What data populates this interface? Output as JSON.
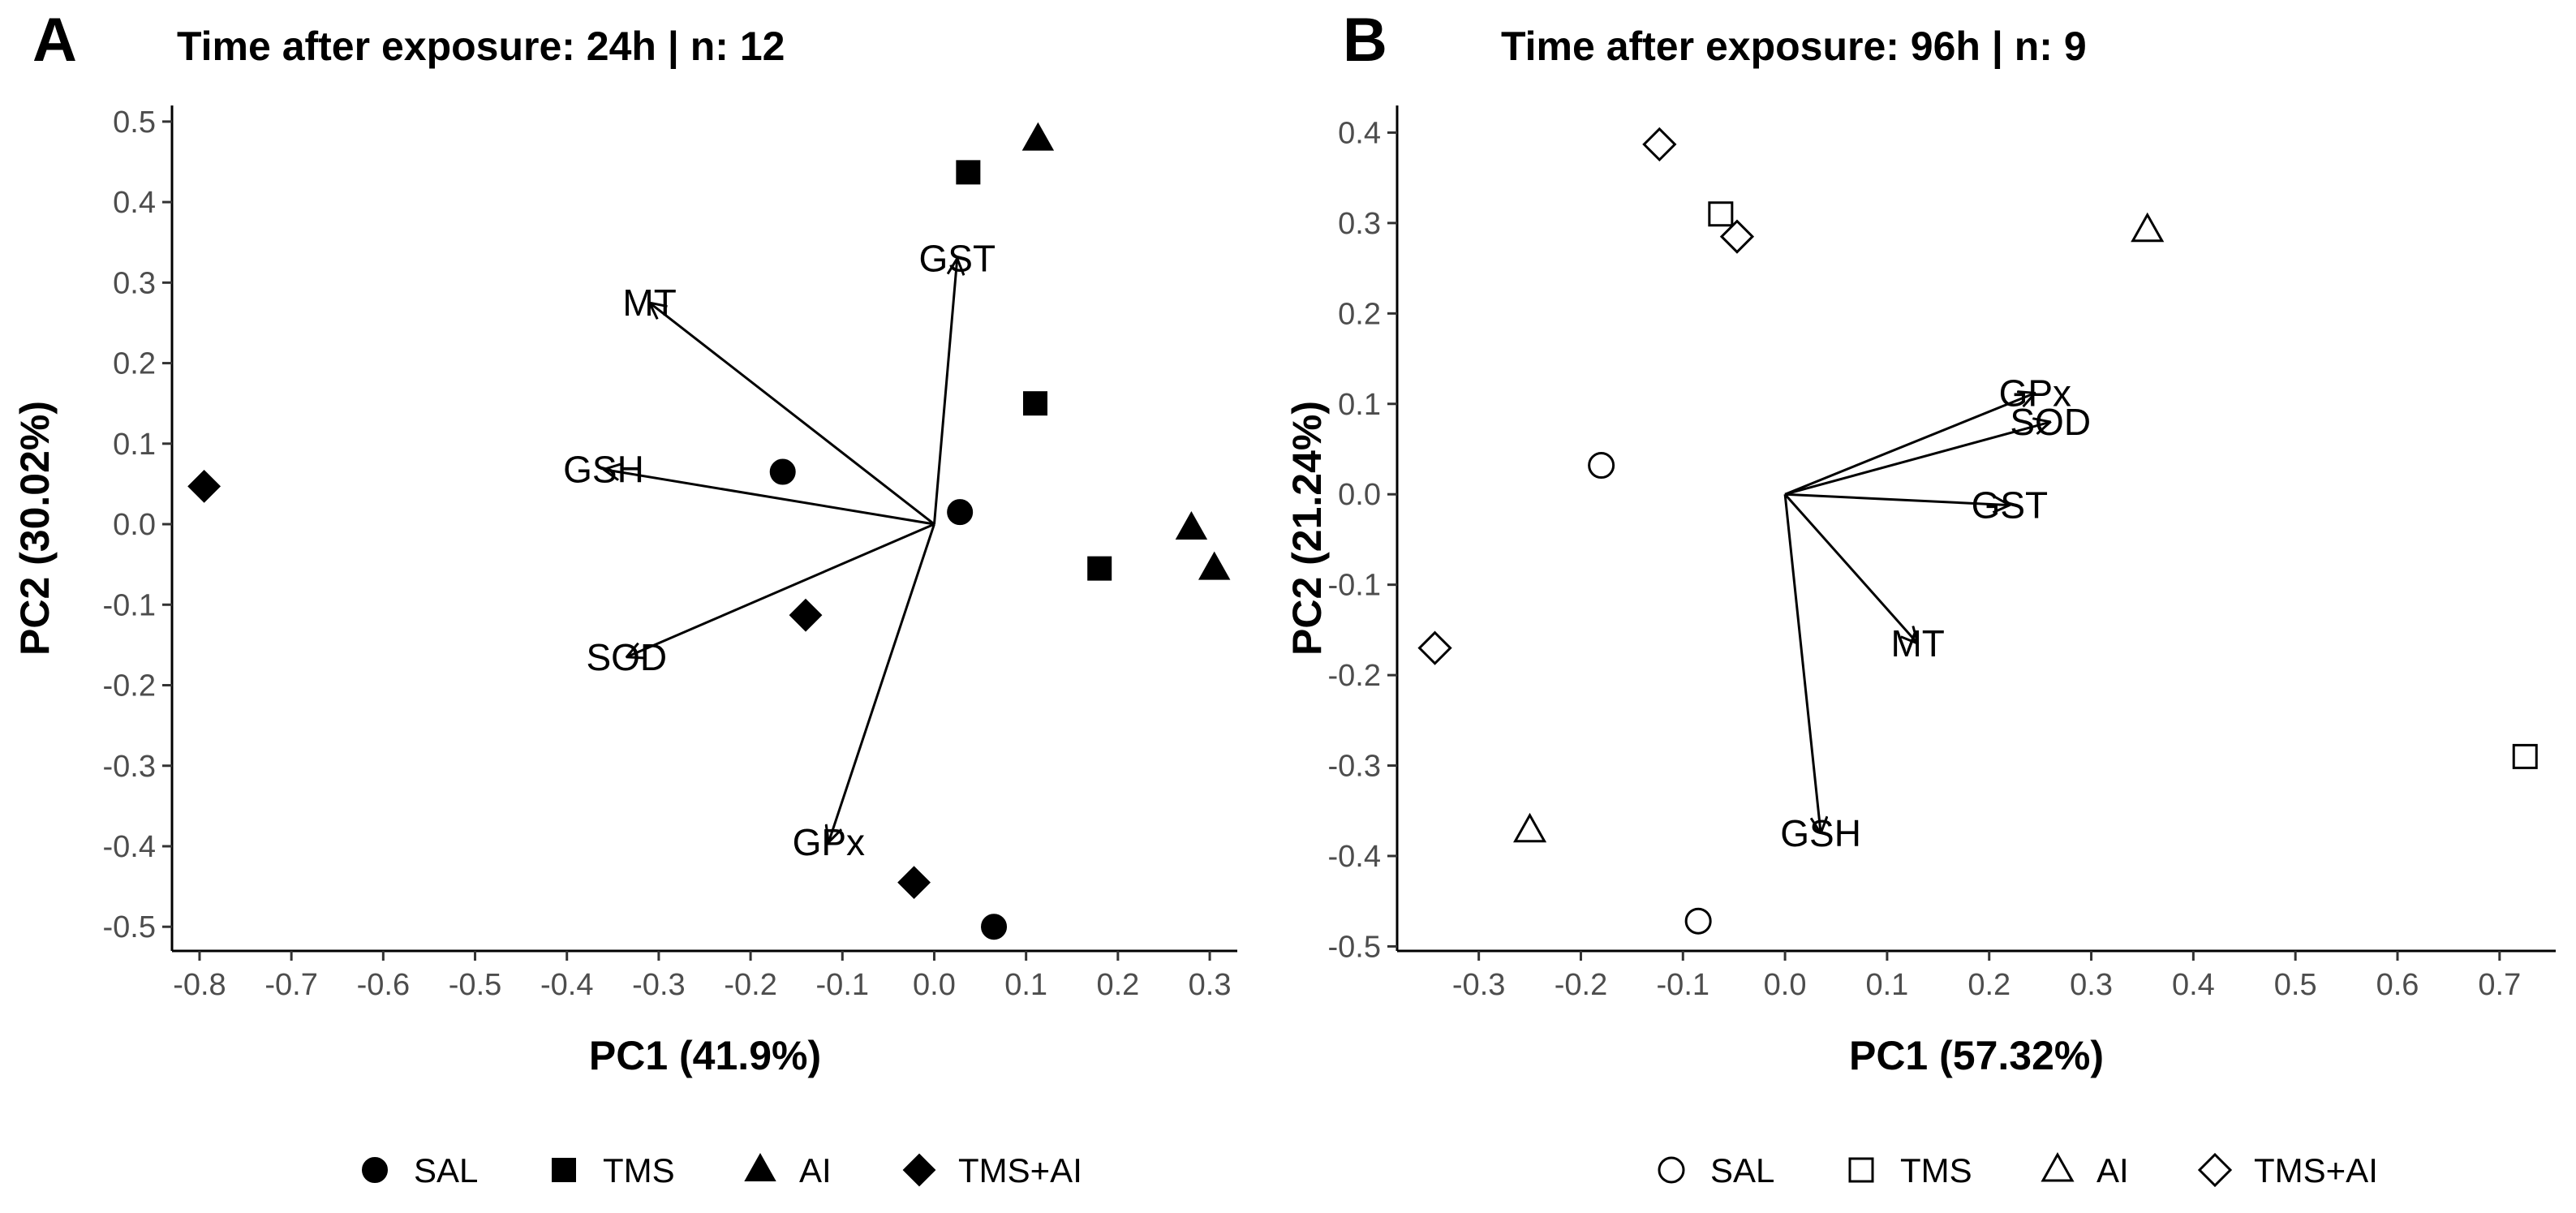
{
  "chart_data": [
    {
      "type": "scatter",
      "panel_label": "A",
      "title": "Time after exposure: 24h | n: 12",
      "xlabel": "PC1 (41.9%)",
      "ylabel": "PC2 (30.02%)",
      "xlim": [
        -0.83,
        0.33
      ],
      "ylim": [
        -0.53,
        0.52
      ],
      "xticks": [
        -0.8,
        -0.7,
        -0.6,
        -0.5,
        -0.4,
        -0.3,
        -0.2,
        -0.1,
        0.0,
        0.1,
        0.2,
        0.3
      ],
      "xtick_labels": [
        "-0.8",
        "-0.7",
        "-0.6",
        "-0.5",
        "-0.4",
        "-0.3",
        "-0.2",
        "-0.1",
        "0.0",
        "0.1",
        "0.2",
        "0.3"
      ],
      "yticks": [
        -0.5,
        -0.4,
        -0.3,
        -0.2,
        -0.1,
        0.0,
        0.1,
        0.2,
        0.3,
        0.4,
        0.5
      ],
      "ytick_labels": [
        "-0.5",
        "-0.4",
        "-0.3",
        "-0.2",
        "-0.1",
        "0.0",
        "0.1",
        "0.2",
        "0.3",
        "0.4",
        "0.5"
      ],
      "marker_fill": "filled",
      "series": [
        {
          "name": "SAL",
          "shape": "circle",
          "points": [
            [
              -0.165,
              0.065
            ],
            [
              0.028,
              0.015
            ],
            [
              0.065,
              -0.5
            ]
          ]
        },
        {
          "name": "TMS",
          "shape": "square",
          "points": [
            [
              0.037,
              0.437
            ],
            [
              0.11,
              0.15
            ],
            [
              0.18,
              -0.055
            ]
          ]
        },
        {
          "name": "AI",
          "shape": "triangle",
          "points": [
            [
              0.113,
              0.478
            ],
            [
              0.28,
              -0.005
            ],
            [
              0.305,
              -0.055
            ]
          ]
        },
        {
          "name": "TMS+AI",
          "shape": "diamond",
          "points": [
            [
              -0.795,
              0.047
            ],
            [
              -0.14,
              -0.113
            ],
            [
              -0.022,
              -0.445
            ]
          ]
        }
      ],
      "vectors": [
        {
          "name": "MT",
          "x": -0.31,
          "y": 0.275,
          "label": "MT"
        },
        {
          "name": "GST",
          "x": 0.025,
          "y": 0.33,
          "label": "GST"
        },
        {
          "name": "GSH",
          "x": -0.36,
          "y": 0.068,
          "label": "GSH"
        },
        {
          "name": "SOD",
          "x": -0.335,
          "y": -0.165,
          "label": "SOD"
        },
        {
          "name": "GPx",
          "x": -0.115,
          "y": -0.395,
          "label": "GPx"
        }
      ]
    },
    {
      "type": "scatter",
      "panel_label": "B",
      "title": "Time after exposure: 96h | n: 9",
      "xlabel": "PC1 (57.32%)",
      "ylabel": "PC2 (21.24%)",
      "xlim": [
        -0.38,
        0.755
      ],
      "ylim": [
        -0.505,
        0.43
      ],
      "xticks": [
        -0.3,
        -0.2,
        -0.1,
        0.0,
        0.1,
        0.2,
        0.3,
        0.4,
        0.5,
        0.6,
        0.7
      ],
      "xtick_labels": [
        "-0.3",
        "-0.2",
        "-0.1",
        "0.0",
        "0.1",
        "0.2",
        "0.3",
        "0.4",
        "0.5",
        "0.6",
        "0.7"
      ],
      "yticks": [
        -0.5,
        -0.4,
        -0.3,
        -0.2,
        -0.1,
        0.0,
        0.1,
        0.2,
        0.3,
        0.4
      ],
      "ytick_labels": [
        "-0.5",
        "-0.4",
        "-0.3",
        "-0.2",
        "-0.1",
        "0.0",
        "0.1",
        "0.2",
        "0.3",
        "0.4"
      ],
      "marker_fill": "open",
      "series": [
        {
          "name": "SAL",
          "shape": "circle",
          "points": [
            [
              -0.18,
              0.032
            ],
            [
              -0.085,
              -0.472
            ]
          ]
        },
        {
          "name": "TMS",
          "shape": "square",
          "points": [
            [
              -0.063,
              0.31
            ],
            [
              0.725,
              -0.29
            ]
          ]
        },
        {
          "name": "AI",
          "shape": "triangle",
          "points": [
            [
              0.355,
              0.292
            ],
            [
              -0.25,
              -0.372
            ]
          ]
        },
        {
          "name": "TMS+AI",
          "shape": "diamond",
          "points": [
            [
              -0.123,
              0.387
            ],
            [
              -0.047,
              0.285
            ],
            [
              -0.343,
              -0.17
            ]
          ]
        }
      ],
      "vectors": [
        {
          "name": "GPx",
          "x": 0.245,
          "y": 0.112,
          "label": "GPx"
        },
        {
          "name": "SOD",
          "x": 0.26,
          "y": 0.08,
          "label": "SOD"
        },
        {
          "name": "GST",
          "x": 0.22,
          "y": -0.012,
          "label": "GST"
        },
        {
          "name": "MT",
          "x": 0.13,
          "y": -0.165,
          "label": "MT"
        },
        {
          "name": "GSH",
          "x": 0.035,
          "y": -0.375,
          "label": "GSH"
        }
      ]
    }
  ],
  "legend_labels": [
    "SAL",
    "TMS",
    "AI",
    "TMS+AI"
  ]
}
